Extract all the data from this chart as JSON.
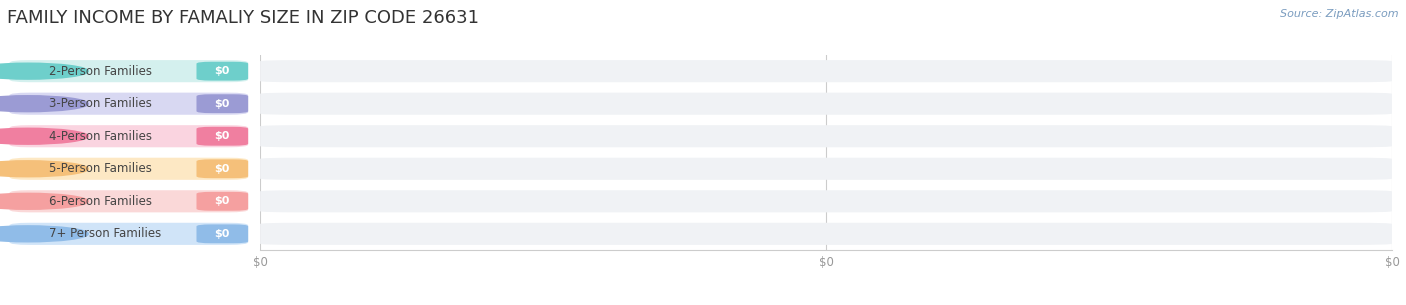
{
  "title": "FAMILY INCOME BY FAMALIY SIZE IN ZIP CODE 26631",
  "source_text": "Source: ZipAtlas.com",
  "categories": [
    "2-Person Families",
    "3-Person Families",
    "4-Person Families",
    "5-Person Families",
    "6-Person Families",
    "7+ Person Families"
  ],
  "values": [
    0,
    0,
    0,
    0,
    0,
    0
  ],
  "bar_colors": [
    "#6ecfcb",
    "#9b9bd4",
    "#f07fa0",
    "#f5c07a",
    "#f5a0a0",
    "#90bce8"
  ],
  "label_bg_colors": [
    "#d4f0ee",
    "#d8d8f2",
    "#fad4e0",
    "#fde8c4",
    "#fad8d8",
    "#d0e4f8"
  ],
  "value_label": "$0",
  "background_color": "#ffffff",
  "bar_bg_color": "#f0f2f5",
  "bar_bg_color2": "#e8eaed",
  "title_fontsize": 13,
  "label_fontsize": 8.5,
  "value_fontsize": 8,
  "source_fontsize": 8,
  "tick_fontsize": 8.5,
  "xlim": [
    0,
    1
  ]
}
